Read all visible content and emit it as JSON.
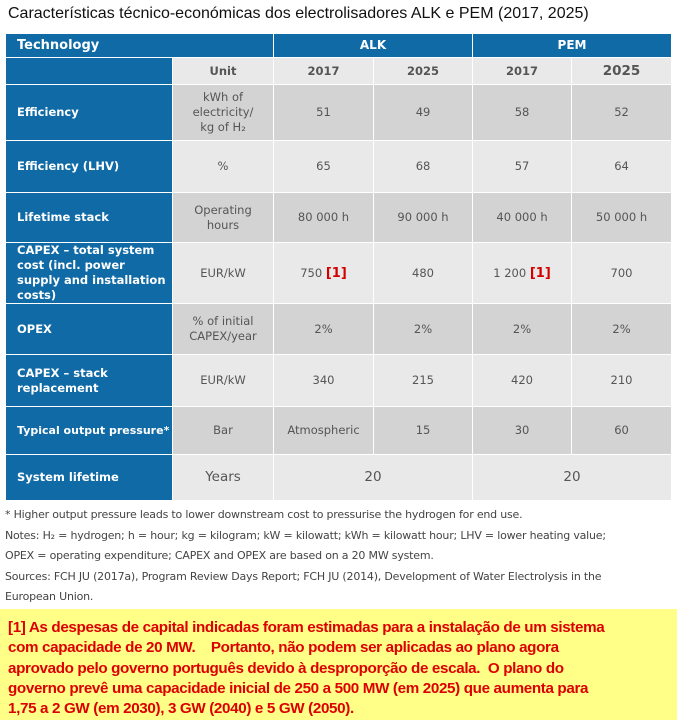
{
  "title": "Características técnico-económicas dos electrolisadores ALK e PEM (2017, 2025)",
  "table": {
    "technology": "Technology",
    "alk": "ALK",
    "pem": "PEM",
    "unit_header": "Unit",
    "years": [
      "2017",
      "2025",
      "2017",
      "2025"
    ],
    "rows": [
      {
        "label": "Efficiency",
        "unit": "kWh of electricity/ kg of H₂",
        "values": [
          "51",
          "49",
          "58",
          "52"
        ]
      },
      {
        "label": "Efficiency (LHV)",
        "unit": "%",
        "values": [
          "65",
          "68",
          "57",
          "64"
        ]
      },
      {
        "label": "Lifetime stack",
        "unit": "Operating hours",
        "values": [
          "80 000 h",
          "90 000 h",
          "40 000 h",
          "50 000 h"
        ]
      },
      {
        "label": "CAPEX – total system cost (incl. power supply and installation costs)",
        "unit": "EUR/kW",
        "values": [
          "750",
          "480",
          "1 200",
          "700"
        ],
        "refs": [
          "[1]",
          "[1]"
        ]
      },
      {
        "label": "OPEX",
        "unit": "% of initial CAPEX/year",
        "values": [
          "2%",
          "2%",
          "2%",
          "2%"
        ]
      },
      {
        "label": "CAPEX – stack replacement",
        "unit": "EUR/kW",
        "values": [
          "340",
          "215",
          "420",
          "210"
        ]
      },
      {
        "label": "Typical output pressure*",
        "unit": "Bar",
        "values": [
          "Atmospheric",
          "15",
          "30",
          "60"
        ]
      },
      {
        "label": "System lifetime",
        "unit": "Years",
        "values": [
          "20",
          "20"
        ]
      }
    ]
  },
  "footnotes": [
    "* Higher output pressure leads to lower downstream cost to pressurise the hydrogen for end use.",
    "Notes: H₂ = hydrogen; h = hour; kg = kilogram; kW = kilowatt; kWh = kilowatt hour; LHV = lower heating value;",
    "OPEX = operating expenditure; CAPEX and OPEX are based on a 20 MW system.",
    "Sources: FCH JU (2017a), Program Review Days Report; FCH JU (2014), Development of Water Electrolysis in the",
    "European Union."
  ],
  "comment_lines": [
    "[1] As despesas de capital indicadas foram estimadas para a instalação de um sistema",
    "com capacidade de 20 MW.    Portanto, não podem ser aplicadas ao plano agora",
    "aprovado pelo governo português devido à desproporção de escala.  O plano do",
    "governo prevê uma capacidade inicial de 250 a 500 MW (em 2025) que aumenta para",
    "1,75 a 2 GW (em 2030), 3 GW (2040) e 5 GW (2050)."
  ],
  "colors": {
    "header_blue": "#0f6aa6",
    "ref_red": "#d40000",
    "note_bg": "#ffff88"
  }
}
